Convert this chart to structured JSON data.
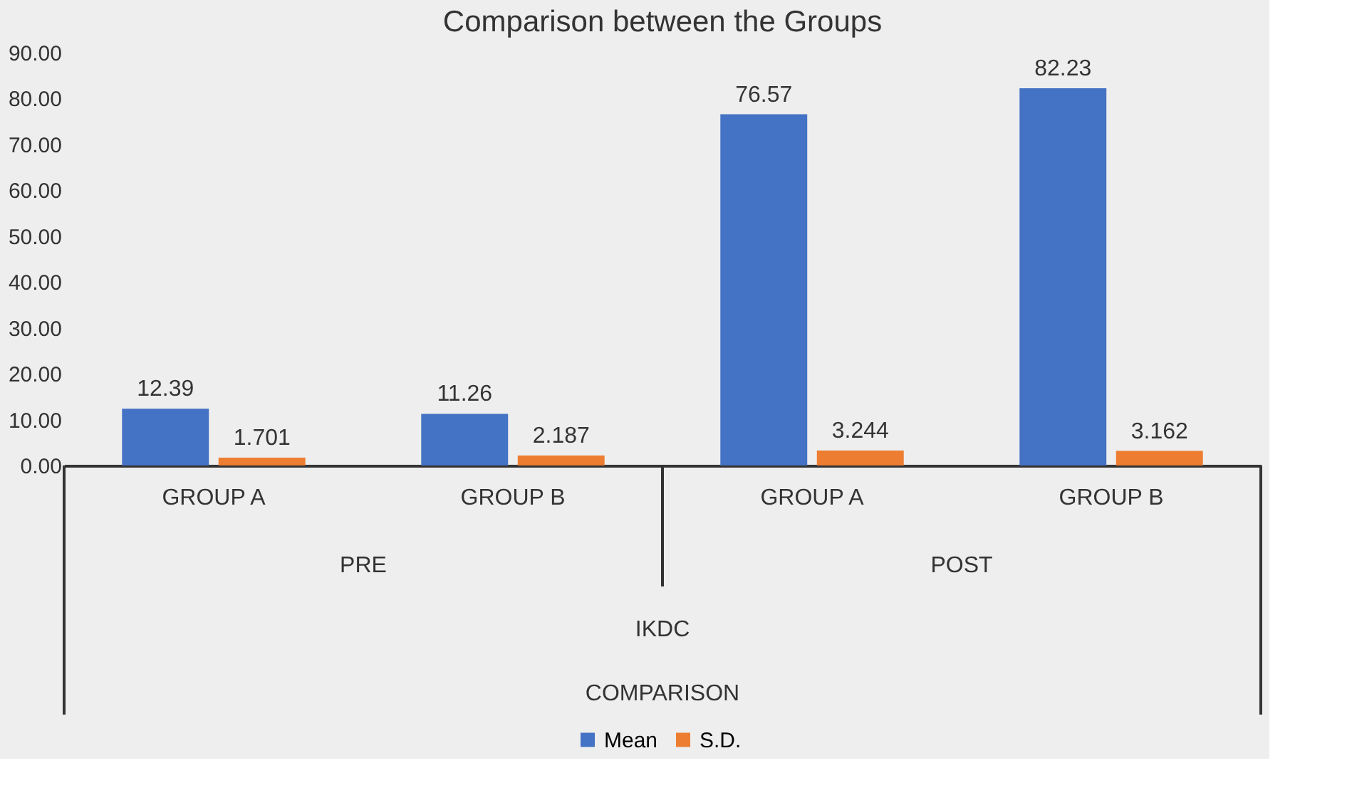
{
  "chart_data": {
    "type": "bar",
    "title": "Comparison between the Groups",
    "categories": [
      "GROUP A",
      "GROUP B",
      "GROUP A",
      "GROUP B"
    ],
    "series": [
      {
        "name": "Mean",
        "color": "#4472c4",
        "values": [
          12.39,
          11.26,
          76.57,
          82.23
        ]
      },
      {
        "name": "S.D.",
        "color": "#ed7d31",
        "values": [
          1.701,
          2.187,
          3.244,
          3.162
        ]
      }
    ],
    "ylim": [
      0,
      90
    ],
    "yticks": [
      {
        "value": 0,
        "label": "0.00"
      },
      {
        "value": 10,
        "label": "10.00"
      },
      {
        "value": 20,
        "label": "20.00"
      },
      {
        "value": 30,
        "label": "30.00"
      },
      {
        "value": 40,
        "label": "40.00"
      },
      {
        "value": 50,
        "label": "50.00"
      },
      {
        "value": 60,
        "label": "60.00"
      },
      {
        "value": 70,
        "label": "70.00"
      },
      {
        "value": 80,
        "label": "80.00"
      },
      {
        "value": 90,
        "label": "90.00"
      }
    ],
    "annotations": [
      "PRE",
      "POST",
      "IKDC",
      "COMPARISON"
    ],
    "data_labels": true,
    "grid": false,
    "legend": "bottom"
  }
}
